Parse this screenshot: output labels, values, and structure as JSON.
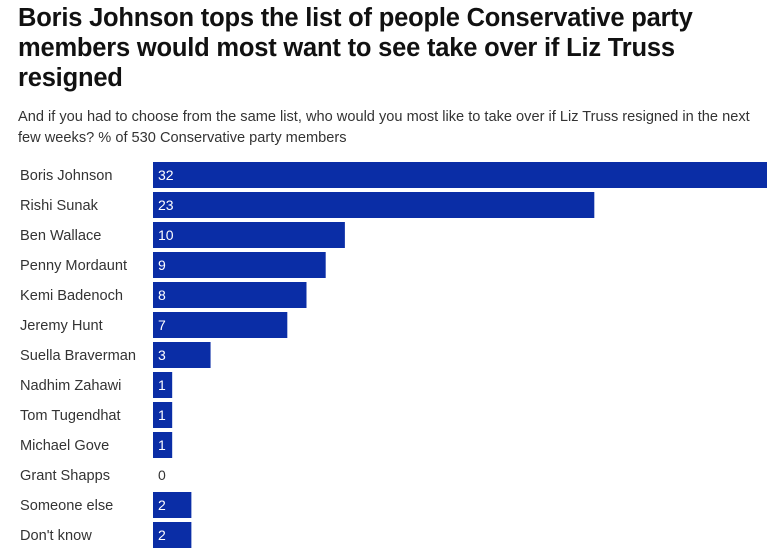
{
  "chart_data": {
    "type": "bar",
    "orientation": "horizontal",
    "title": "Boris Johnson tops the list of people Conservative party members would most want to see take over if Liz Truss resigned",
    "subtitle": "And if you had to choose from the same list, who would you most like to take over if Liz Truss resigned in the next few weeks? % of 530 Conservative party members",
    "categories": [
      "Boris Johnson",
      "Rishi Sunak",
      "Ben Wallace",
      "Penny Mordaunt",
      "Kemi Badenoch",
      "Jeremy Hunt",
      "Suella Braverman",
      "Nadhim Zahawi",
      "Tom Tugendhat",
      "Michael Gove",
      "Grant Shapps",
      "Someone else",
      "Don't know"
    ],
    "values": [
      32,
      23,
      10,
      9,
      8,
      7,
      3,
      1,
      1,
      1,
      0,
      2,
      2
    ],
    "value_labels": [
      "32",
      "23",
      "10",
      "9",
      "8",
      "7",
      "3",
      "1",
      "1",
      "1",
      "0",
      "2",
      "2"
    ],
    "xlim": [
      0,
      32
    ],
    "bar_color": "#0a2da6",
    "value_label_color_inside": "#ffffff",
    "value_label_color_outside": "#333333",
    "grid": false,
    "legend": "none"
  }
}
